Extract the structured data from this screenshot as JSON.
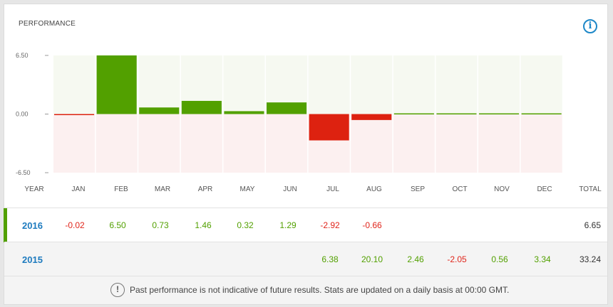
{
  "widget": {
    "title": "PERFORMANCE",
    "info_icon": "info-icon",
    "info_glyph": "i"
  },
  "axis": {
    "ticks": [
      "6.50",
      "0.00",
      "-6.50"
    ]
  },
  "header": {
    "year_label": "YEAR",
    "months": [
      "JAN",
      "FEB",
      "MAR",
      "APR",
      "MAY",
      "JUN",
      "JUL",
      "AUG",
      "SEP",
      "OCT",
      "NOV",
      "DEC"
    ],
    "total_label": "TOTAL"
  },
  "rows": [
    {
      "year": "2016",
      "values": [
        "-0.02",
        "6.50",
        "0.73",
        "1.46",
        "0.32",
        "1.29",
        "-2.92",
        "-0.66",
        "",
        "",
        "",
        ""
      ],
      "total": "6.65"
    },
    {
      "year": "2015",
      "values": [
        "",
        "",
        "",
        "",
        "",
        "",
        "6.38",
        "20.10",
        "2.46",
        "-2.05",
        "0.56",
        "3.34"
      ],
      "total": "33.24"
    }
  ],
  "footer": {
    "glyph": "!",
    "note": "Past performance is not indicative of future results. Stats are updated on a daily basis at 00:00 GMT."
  },
  "chart_data": {
    "type": "bar",
    "categories": [
      "JAN",
      "FEB",
      "MAR",
      "APR",
      "MAY",
      "JUN",
      "JUL",
      "AUG",
      "SEP",
      "OCT",
      "NOV",
      "DEC"
    ],
    "values": [
      -0.02,
      6.5,
      0.73,
      1.46,
      0.32,
      1.29,
      -2.92,
      -0.66,
      0,
      0,
      0,
      0
    ],
    "ylim": [
      -6.5,
      6.5
    ],
    "yticks": [
      6.5,
      0,
      -6.5
    ],
    "colors": {
      "positive": "#52a000",
      "negative": "#dd2210",
      "positive_bg": "#f6f9f1",
      "negative_bg": "#fcf0f0"
    }
  }
}
